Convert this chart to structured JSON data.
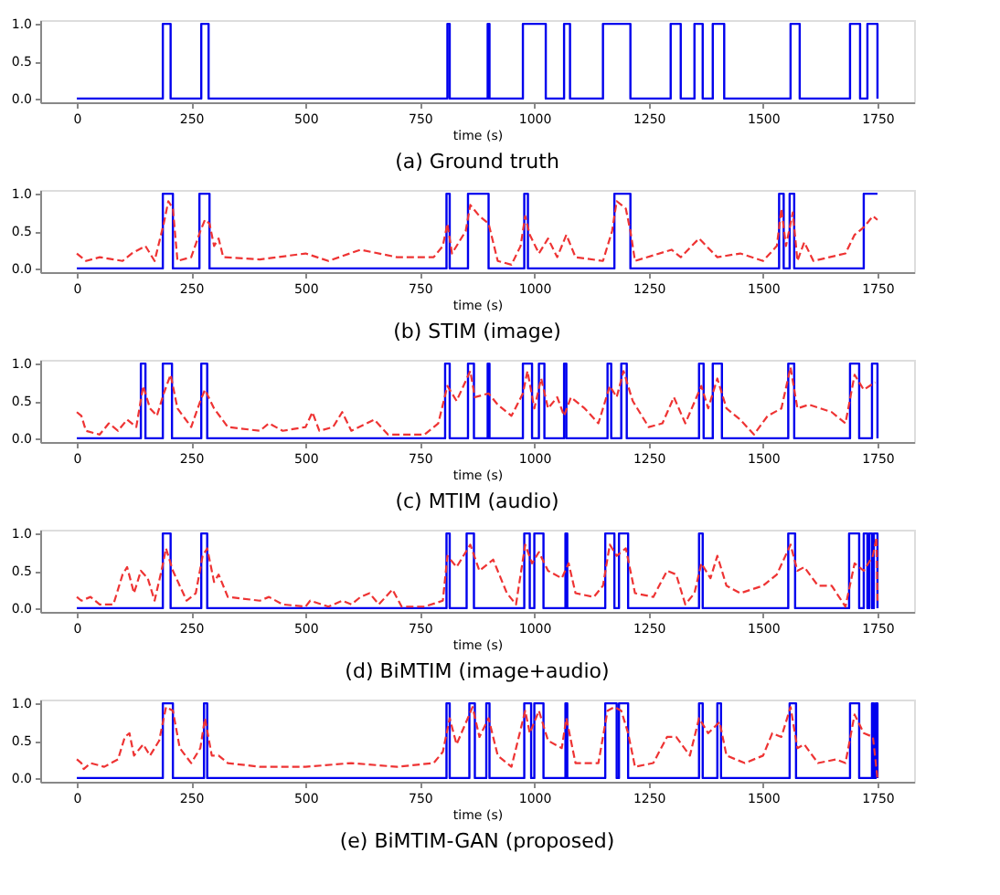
{
  "chart_data": [
    {
      "type": "line",
      "title": "(a)  Ground truth",
      "xlabel": "time (s)",
      "xlim": [
        -80,
        1830
      ],
      "ylim": [
        -0.05,
        1.05
      ],
      "xticks": [
        0,
        250,
        500,
        750,
        1000,
        1250,
        1500,
        1750
      ],
      "yticks": [
        {
          "value": 0,
          "label": "0.0"
        },
        {
          "value": 0.5,
          "label": "0.5"
        },
        {
          "value": 1,
          "label": "1.0"
        }
      ],
      "grid": false,
      "series": [
        {
          "type": "step",
          "color": "#0000ee",
          "x": [
            0,
            188,
            205,
            272,
            288,
            810,
            815,
            898,
            902,
            975,
            1025,
            1065,
            1078,
            1150,
            1210,
            1298,
            1320,
            1350,
            1368,
            1390,
            1415,
            1560,
            1580,
            1690,
            1712,
            1728,
            1750
          ],
          "values": [
            0,
            1,
            0,
            1,
            0,
            1,
            0,
            1,
            0,
            1,
            0,
            1,
            0,
            1,
            0,
            1,
            0,
            1,
            0,
            1,
            0,
            1,
            0,
            1,
            0,
            1,
            0
          ]
        }
      ]
    },
    {
      "type": "line",
      "title": "(b)  STIM  (image)",
      "xlabel": "time (s)",
      "xlim": [
        -80,
        1830
      ],
      "ylim": [
        -0.05,
        1.05
      ],
      "xticks": [
        0,
        250,
        500,
        750,
        1000,
        1250,
        1500,
        1750
      ],
      "yticks": [
        {
          "value": 0,
          "label": "0.0"
        },
        {
          "value": 0.5,
          "label": "0.5"
        },
        {
          "value": 1,
          "label": "1.0"
        }
      ],
      "grid": false,
      "series": [
        {
          "type": "step",
          "color": "#0000ee",
          "x": [
            0,
            188,
            210,
            268,
            290,
            808,
            815,
            855,
            900,
            978,
            986,
            1175,
            1210,
            1535,
            1545,
            1558,
            1568,
            1720,
            1750
          ],
          "values": [
            0,
            1,
            0,
            1,
            0,
            1,
            0,
            1,
            0,
            1,
            0,
            1,
            0,
            1,
            0,
            1,
            0,
            1,
            1
          ]
        },
        {
          "type": "line",
          "line_style": "dashed",
          "color": "#ee3333",
          "x": [
            0,
            20,
            50,
            100,
            120,
            150,
            170,
            190,
            200,
            210,
            220,
            250,
            270,
            280,
            290,
            300,
            310,
            320,
            400,
            500,
            550,
            620,
            700,
            780,
            800,
            810,
            820,
            850,
            860,
            880,
            900,
            920,
            950,
            970,
            980,
            990,
            1010,
            1030,
            1050,
            1070,
            1090,
            1150,
            1170,
            1180,
            1200,
            1210,
            1220,
            1300,
            1320,
            1360,
            1400,
            1450,
            1500,
            1530,
            1540,
            1550,
            1565,
            1575,
            1590,
            1610,
            1680,
            1700,
            1720,
            1740,
            1750
          ],
          "values": [
            0.2,
            0.1,
            0.15,
            0.1,
            0.2,
            0.3,
            0.1,
            0.6,
            0.9,
            0.8,
            0.1,
            0.15,
            0.5,
            0.65,
            0.6,
            0.3,
            0.4,
            0.15,
            0.12,
            0.2,
            0.1,
            0.25,
            0.15,
            0.15,
            0.3,
            0.6,
            0.2,
            0.5,
            0.85,
            0.7,
            0.6,
            0.1,
            0.05,
            0.3,
            0.7,
            0.45,
            0.2,
            0.4,
            0.15,
            0.45,
            0.15,
            0.1,
            0.5,
            0.9,
            0.8,
            0.5,
            0.1,
            0.25,
            0.15,
            0.4,
            0.15,
            0.2,
            0.1,
            0.3,
            0.8,
            0.3,
            0.75,
            0.1,
            0.35,
            0.1,
            0.2,
            0.45,
            0.55,
            0.7,
            0.65
          ]
        }
      ]
    },
    {
      "type": "line",
      "title": "(c)  MTIM  (audio)",
      "xlabel": "time (s)",
      "xlim": [
        -80,
        1830
      ],
      "ylim": [
        -0.05,
        1.05
      ],
      "xticks": [
        0,
        250,
        500,
        750,
        1000,
        1250,
        1500,
        1750
      ],
      "yticks": [
        {
          "value": 0,
          "label": "0.0"
        },
        {
          "value": 0.5,
          "label": "0.5"
        },
        {
          "value": 1,
          "label": "1.0"
        }
      ],
      "grid": false,
      "series": [
        {
          "type": "step",
          "color": "#0000ee",
          "x": [
            0,
            140,
            150,
            188,
            208,
            272,
            285,
            805,
            815,
            855,
            868,
            898,
            902,
            975,
            995,
            1010,
            1022,
            1065,
            1070,
            1160,
            1168,
            1190,
            1202,
            1360,
            1370,
            1390,
            1410,
            1555,
            1568,
            1690,
            1710,
            1738,
            1750
          ],
          "values": [
            0,
            1,
            0,
            1,
            0,
            1,
            0,
            1,
            0,
            1,
            0,
            1,
            0,
            1,
            0,
            1,
            0,
            1,
            0,
            1,
            0,
            1,
            0,
            1,
            0,
            1,
            0,
            1,
            0,
            1,
            0,
            1,
            0
          ]
        },
        {
          "type": "line",
          "line_style": "dashed",
          "color": "#ee3333",
          "x": [
            0,
            10,
            20,
            50,
            70,
            90,
            110,
            130,
            145,
            160,
            175,
            190,
            205,
            220,
            250,
            270,
            280,
            300,
            330,
            400,
            420,
            450,
            500,
            515,
            530,
            560,
            580,
            600,
            650,
            680,
            720,
            760,
            790,
            810,
            830,
            860,
            870,
            900,
            920,
            950,
            975,
            985,
            1000,
            1015,
            1030,
            1050,
            1065,
            1080,
            1110,
            1140,
            1165,
            1180,
            1195,
            1215,
            1250,
            1280,
            1305,
            1330,
            1365,
            1380,
            1400,
            1420,
            1450,
            1480,
            1510,
            1540,
            1560,
            1575,
            1600,
            1650,
            1680,
            1700,
            1720,
            1745
          ],
          "values": [
            0.35,
            0.3,
            0.1,
            0.05,
            0.2,
            0.1,
            0.25,
            0.15,
            0.7,
            0.4,
            0.3,
            0.6,
            0.85,
            0.4,
            0.15,
            0.5,
            0.65,
            0.4,
            0.15,
            0.1,
            0.2,
            0.1,
            0.15,
            0.35,
            0.1,
            0.15,
            0.35,
            0.1,
            0.25,
            0.05,
            0.05,
            0.05,
            0.2,
            0.7,
            0.5,
            0.9,
            0.55,
            0.6,
            0.45,
            0.3,
            0.6,
            0.9,
            0.4,
            0.8,
            0.4,
            0.55,
            0.3,
            0.55,
            0.4,
            0.2,
            0.7,
            0.55,
            0.9,
            0.5,
            0.15,
            0.2,
            0.55,
            0.2,
            0.7,
            0.4,
            0.8,
            0.4,
            0.25,
            0.05,
            0.3,
            0.4,
            0.95,
            0.4,
            0.45,
            0.35,
            0.2,
            0.85,
            0.65,
            0.75
          ]
        }
      ]
    },
    {
      "type": "line",
      "title": "(d)  BiMTIM  (image+audio)",
      "xlabel": "time (s)",
      "xlim": [
        -80,
        1830
      ],
      "ylim": [
        -0.05,
        1.05
      ],
      "xticks": [
        0,
        250,
        500,
        750,
        1000,
        1250,
        1500,
        1750
      ],
      "yticks": [
        {
          "value": 0,
          "label": "0.0"
        },
        {
          "value": 0.5,
          "label": "0.5"
        },
        {
          "value": 1,
          "label": "1.0"
        }
      ],
      "grid": false,
      "series": [
        {
          "type": "step",
          "color": "#0000ee",
          "x": [
            0,
            188,
            205,
            272,
            285,
            808,
            815,
            852,
            868,
            978,
            990,
            1000,
            1020,
            1068,
            1072,
            1155,
            1175,
            1185,
            1205,
            1360,
            1368,
            1555,
            1570,
            1688,
            1710,
            1720,
            1728,
            1732,
            1738,
            1742,
            1750
          ],
          "values": [
            0,
            1,
            0,
            1,
            0,
            1,
            0,
            1,
            0,
            1,
            0,
            1,
            0,
            1,
            0,
            1,
            0,
            1,
            0,
            1,
            0,
            1,
            0,
            1,
            0,
            1,
            0,
            1,
            0,
            1,
            0
          ]
        },
        {
          "type": "line",
          "line_style": "dashed",
          "color": "#ee3333",
          "x": [
            0,
            10,
            30,
            50,
            80,
            100,
            110,
            125,
            140,
            155,
            170,
            185,
            195,
            210,
            240,
            260,
            275,
            285,
            300,
            310,
            330,
            400,
            420,
            450,
            500,
            510,
            550,
            580,
            600,
            620,
            640,
            660,
            690,
            710,
            760,
            800,
            810,
            830,
            860,
            880,
            910,
            940,
            960,
            980,
            995,
            1010,
            1030,
            1060,
            1075,
            1090,
            1130,
            1150,
            1165,
            1180,
            1200,
            1220,
            1260,
            1290,
            1310,
            1330,
            1350,
            1365,
            1385,
            1400,
            1420,
            1450,
            1500,
            1530,
            1560,
            1575,
            1590,
            1620,
            1650,
            1680,
            1700,
            1720,
            1740,
            1748,
            1750
          ],
          "values": [
            0.15,
            0.1,
            0.15,
            0.05,
            0.05,
            0.45,
            0.55,
            0.2,
            0.5,
            0.4,
            0.1,
            0.5,
            0.8,
            0.5,
            0.1,
            0.2,
            0.7,
            0.8,
            0.35,
            0.45,
            0.15,
            0.1,
            0.15,
            0.05,
            0.02,
            0.1,
            0.02,
            0.1,
            0.05,
            0.15,
            0.2,
            0.05,
            0.25,
            0.02,
            0.02,
            0.1,
            0.7,
            0.55,
            0.85,
            0.5,
            0.65,
            0.2,
            0.05,
            0.85,
            0.6,
            0.75,
            0.5,
            0.4,
            0.6,
            0.2,
            0.15,
            0.3,
            0.85,
            0.7,
            0.8,
            0.2,
            0.15,
            0.5,
            0.45,
            0.05,
            0.2,
            0.6,
            0.4,
            0.7,
            0.3,
            0.2,
            0.3,
            0.45,
            0.85,
            0.5,
            0.55,
            0.3,
            0.3,
            0.02,
            0.6,
            0.5,
            0.7,
            0.95,
            0.1
          ]
        }
      ]
    },
    {
      "type": "line",
      "title": "(e)  BiMTIM-GAN  (proposed)",
      "xlabel": "time (s)",
      "xlim": [
        -80,
        1830
      ],
      "ylim": [
        -0.05,
        1.05
      ],
      "xticks": [
        0,
        250,
        500,
        750,
        1000,
        1250,
        1500,
        1750
      ],
      "yticks": [
        {
          "value": 0,
          "label": "0.0"
        },
        {
          "value": 0.5,
          "label": "0.5"
        },
        {
          "value": 1,
          "label": "1.0"
        }
      ],
      "grid": false,
      "series": [
        {
          "type": "step",
          "color": "#0000ee",
          "x": [
            0,
            188,
            210,
            278,
            285,
            808,
            815,
            858,
            870,
            895,
            902,
            978,
            993,
            1000,
            1020,
            1068,
            1072,
            1155,
            1180,
            1185,
            1205,
            1360,
            1368,
            1400,
            1408,
            1558,
            1572,
            1690,
            1710,
            1738,
            1742,
            1746,
            1750
          ],
          "values": [
            0,
            1,
            0,
            1,
            0,
            1,
            0,
            1,
            0,
            1,
            0,
            1,
            0,
            1,
            0,
            1,
            0,
            1,
            0,
            1,
            0,
            1,
            0,
            1,
            0,
            1,
            0,
            1,
            0,
            1,
            0,
            1,
            0
          ]
        },
        {
          "type": "line",
          "line_style": "dashed",
          "color": "#ee3333",
          "x": [
            0,
            10,
            15,
            30,
            60,
            90,
            105,
            115,
            125,
            145,
            160,
            180,
            195,
            210,
            225,
            250,
            270,
            280,
            295,
            310,
            330,
            400,
            500,
            600,
            700,
            780,
            800,
            815,
            830,
            865,
            880,
            900,
            920,
            950,
            980,
            990,
            1010,
            1030,
            1060,
            1070,
            1090,
            1140,
            1160,
            1175,
            1190,
            1205,
            1220,
            1260,
            1290,
            1310,
            1340,
            1360,
            1380,
            1405,
            1420,
            1460,
            1500,
            1520,
            1540,
            1560,
            1575,
            1590,
            1620,
            1660,
            1680,
            1700,
            1720,
            1740,
            1750
          ],
          "values": [
            0.25,
            0.2,
            0.12,
            0.2,
            0.15,
            0.25,
            0.55,
            0.6,
            0.3,
            0.45,
            0.3,
            0.5,
            0.95,
            0.9,
            0.4,
            0.2,
            0.4,
            0.8,
            0.3,
            0.3,
            0.2,
            0.15,
            0.15,
            0.2,
            0.15,
            0.2,
            0.35,
            0.8,
            0.45,
            0.95,
            0.55,
            0.8,
            0.3,
            0.15,
            0.9,
            0.6,
            0.9,
            0.5,
            0.4,
            0.8,
            0.2,
            0.2,
            0.9,
            0.95,
            0.9,
            0.6,
            0.15,
            0.2,
            0.55,
            0.55,
            0.3,
            0.8,
            0.6,
            0.75,
            0.3,
            0.2,
            0.3,
            0.6,
            0.55,
            0.95,
            0.4,
            0.45,
            0.2,
            0.25,
            0.2,
            0.85,
            0.6,
            0.55,
            0.0
          ]
        }
      ]
    }
  ]
}
